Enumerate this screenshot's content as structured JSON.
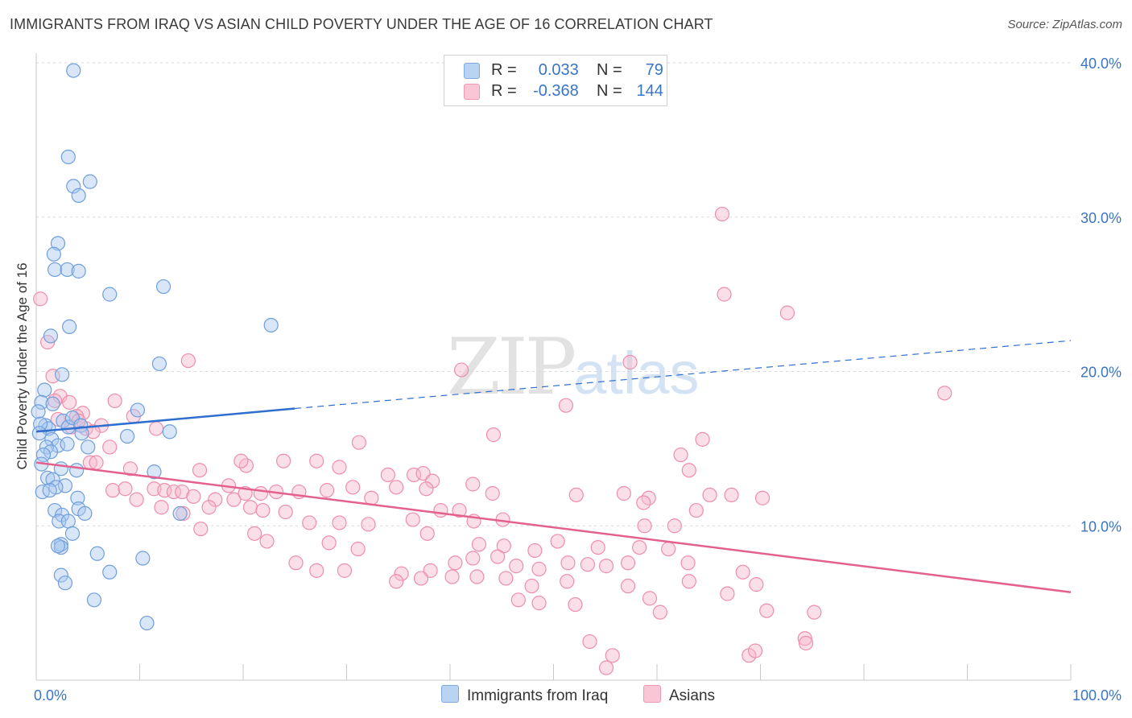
{
  "title": "IMMIGRANTS FROM IRAQ VS ASIAN CHILD POVERTY UNDER THE AGE OF 16 CORRELATION CHART",
  "source": "Source: ZipAtlas.com",
  "watermark": {
    "zip": "ZIP",
    "atlas": "atlas"
  },
  "legend": {
    "rows": [
      {
        "r_label": "R =",
        "r_value": "0.033",
        "n_label": "N =",
        "n_value": "79"
      },
      {
        "r_label": "R =",
        "r_value": "-0.368",
        "n_label": "N =",
        "n_value": "144"
      }
    ]
  },
  "bottom_legend": {
    "series1": "Immigrants from Iraq",
    "series2": "Asians"
  },
  "colors": {
    "blue_fill": "#a8c8ef",
    "blue_stroke": "#6f9fdc",
    "blue_line": "#2f6fcf",
    "pink_fill": "#f7b9cc",
    "pink_stroke": "#ee8eaa",
    "pink_line": "#e3608f",
    "axis_text": "#3a75c4",
    "grid": "#d9d9d9"
  },
  "chart_data": {
    "type": "scatter",
    "title": "IMMIGRANTS FROM IRAQ VS ASIAN CHILD POVERTY UNDER THE AGE OF 16 CORRELATION CHART",
    "xlabel": "",
    "ylabel": "Child Poverty Under the Age of 16",
    "xlim": [
      0,
      100
    ],
    "ylim": [
      0,
      40
    ],
    "x_tick_labels": [
      "0.0%",
      "100.0%"
    ],
    "y_ticks": [
      10,
      20,
      30,
      40
    ],
    "y_tick_labels": [
      "10.0%",
      "20.0%",
      "30.0%",
      "40.0%"
    ],
    "grid": true,
    "series": [
      {
        "name": "Immigrants from Iraq",
        "color": "#a8c8ef",
        "R": 0.033,
        "N": 79,
        "trend": {
          "x0": 0,
          "y0": 16.1,
          "x1": 25,
          "y1": 17.6,
          "dashed_to": [
            100,
            22.0
          ]
        },
        "points": [
          [
            3.6,
            39.5
          ],
          [
            3.1,
            33.9
          ],
          [
            3.6,
            32.0
          ],
          [
            5.2,
            32.3
          ],
          [
            4.1,
            31.4
          ],
          [
            2.1,
            28.3
          ],
          [
            1.7,
            27.6
          ],
          [
            1.8,
            26.6
          ],
          [
            3.0,
            26.6
          ],
          [
            4.1,
            26.5
          ],
          [
            7.1,
            25.0
          ],
          [
            12.3,
            25.5
          ],
          [
            22.7,
            23.0
          ],
          [
            3.2,
            22.9
          ],
          [
            1.4,
            22.3
          ],
          [
            11.9,
            20.5
          ],
          [
            2.5,
            19.8
          ],
          [
            0.8,
            18.8
          ],
          [
            0.5,
            18.0
          ],
          [
            1.6,
            17.9
          ],
          [
            0.2,
            17.4
          ],
          [
            9.8,
            17.5
          ],
          [
            2.6,
            16.8
          ],
          [
            3.1,
            16.4
          ],
          [
            3.5,
            17.0
          ],
          [
            4.3,
            16.5
          ],
          [
            0.9,
            16.5
          ],
          [
            1.2,
            16.3
          ],
          [
            0.4,
            16.6
          ],
          [
            0.3,
            16.0
          ],
          [
            1.5,
            15.6
          ],
          [
            4.4,
            16.0
          ],
          [
            12.9,
            16.1
          ],
          [
            8.8,
            15.8
          ],
          [
            2.1,
            15.2
          ],
          [
            3.0,
            15.3
          ],
          [
            1.0,
            15.1
          ],
          [
            1.4,
            14.8
          ],
          [
            5.0,
            15.1
          ],
          [
            0.7,
            14.6
          ],
          [
            0.5,
            14.0
          ],
          [
            2.4,
            13.7
          ],
          [
            3.9,
            13.6
          ],
          [
            11.4,
            13.5
          ],
          [
            1.1,
            13.1
          ],
          [
            1.6,
            13.0
          ],
          [
            2.8,
            12.6
          ],
          [
            1.9,
            12.5
          ],
          [
            0.6,
            12.2
          ],
          [
            1.3,
            12.3
          ],
          [
            4.0,
            11.8
          ],
          [
            4.1,
            11.1
          ],
          [
            1.8,
            11.0
          ],
          [
            2.5,
            10.7
          ],
          [
            4.7,
            10.8
          ],
          [
            13.9,
            10.8
          ],
          [
            2.2,
            10.3
          ],
          [
            3.1,
            10.3
          ],
          [
            3.5,
            9.5
          ],
          [
            2.4,
            8.8
          ],
          [
            2.4,
            8.6
          ],
          [
            5.9,
            8.2
          ],
          [
            10.3,
            7.9
          ],
          [
            2.4,
            6.8
          ],
          [
            2.8,
            6.3
          ],
          [
            7.1,
            7.0
          ],
          [
            5.6,
            5.2
          ],
          [
            10.7,
            3.7
          ],
          [
            2.1,
            8.7
          ]
        ]
      },
      {
        "name": "Asians",
        "color": "#f7b9cc",
        "R": -0.368,
        "N": 144,
        "trend": {
          "x0": 0,
          "y0": 14.1,
          "x1": 100,
          "y1": 5.7
        },
        "points": [
          [
            66.3,
            30.2
          ],
          [
            66.5,
            25.0
          ],
          [
            72.6,
            23.8
          ],
          [
            0.4,
            24.7
          ],
          [
            1.1,
            21.9
          ],
          [
            14.7,
            20.7
          ],
          [
            41.1,
            20.1
          ],
          [
            57.4,
            20.6
          ],
          [
            1.6,
            19.7
          ],
          [
            2.3,
            18.4
          ],
          [
            1.8,
            18.1
          ],
          [
            3.2,
            18.0
          ],
          [
            7.6,
            18.1
          ],
          [
            87.8,
            18.6
          ],
          [
            51.2,
            17.8
          ],
          [
            4.5,
            17.3
          ],
          [
            3.9,
            17.1
          ],
          [
            2.1,
            16.9
          ],
          [
            11.6,
            16.3
          ],
          [
            6.3,
            16.5
          ],
          [
            3.4,
            16.4
          ],
          [
            9.4,
            17.1
          ],
          [
            4.8,
            16.3
          ],
          [
            5.5,
            16.1
          ],
          [
            44.2,
            15.9
          ],
          [
            64.4,
            15.6
          ],
          [
            31.2,
            15.4
          ],
          [
            7.1,
            15.1
          ],
          [
            5.2,
            14.1
          ],
          [
            5.8,
            14.1
          ],
          [
            20.3,
            13.9
          ],
          [
            19.8,
            14.2
          ],
          [
            23.9,
            14.2
          ],
          [
            27.1,
            14.2
          ],
          [
            62.3,
            14.6
          ],
          [
            63.1,
            13.6
          ],
          [
            29.3,
            13.8
          ],
          [
            34.0,
            13.3
          ],
          [
            36.5,
            13.3
          ],
          [
            37.4,
            13.4
          ],
          [
            38.3,
            12.9
          ],
          [
            9.1,
            13.7
          ],
          [
            11.4,
            12.4
          ],
          [
            12.4,
            12.3
          ],
          [
            13.3,
            12.2
          ],
          [
            14.1,
            12.2
          ],
          [
            15.2,
            11.9
          ],
          [
            17.3,
            11.7
          ],
          [
            19.1,
            11.7
          ],
          [
            20.2,
            12.1
          ],
          [
            21.7,
            12.1
          ],
          [
            23.2,
            12.2
          ],
          [
            25.4,
            12.2
          ],
          [
            28.1,
            12.3
          ],
          [
            30.6,
            12.5
          ],
          [
            34.8,
            12.5
          ],
          [
            37.7,
            12.4
          ],
          [
            42.2,
            12.7
          ],
          [
            44.1,
            12.1
          ],
          [
            52.2,
            12.0
          ],
          [
            56.8,
            12.1
          ],
          [
            59.2,
            11.8
          ],
          [
            65.1,
            12.0
          ],
          [
            70.2,
            11.8
          ],
          [
            7.4,
            12.3
          ],
          [
            8.6,
            12.4
          ],
          [
            9.7,
            11.7
          ],
          [
            12.1,
            11.2
          ],
          [
            14.2,
            10.8
          ],
          [
            16.7,
            11.2
          ],
          [
            20.7,
            11.2
          ],
          [
            21.9,
            11.0
          ],
          [
            24.1,
            10.9
          ],
          [
            26.4,
            10.2
          ],
          [
            29.3,
            10.2
          ],
          [
            32.1,
            10.1
          ],
          [
            36.4,
            10.4
          ],
          [
            39.1,
            11.0
          ],
          [
            42.3,
            10.3
          ],
          [
            45.1,
            10.4
          ],
          [
            58.8,
            10.0
          ],
          [
            61.7,
            10.0
          ],
          [
            63.8,
            11.0
          ],
          [
            58.7,
            11.5
          ],
          [
            67.2,
            12.0
          ],
          [
            4.1,
            16.8
          ],
          [
            15.9,
            9.8
          ],
          [
            21.1,
            9.5
          ],
          [
            22.3,
            9.0
          ],
          [
            28.3,
            8.9
          ],
          [
            31.1,
            8.5
          ],
          [
            37.8,
            9.5
          ],
          [
            42.8,
            8.8
          ],
          [
            45.2,
            8.7
          ],
          [
            48.2,
            8.4
          ],
          [
            50.4,
            9.0
          ],
          [
            54.3,
            8.6
          ],
          [
            58.3,
            8.6
          ],
          [
            61.1,
            8.5
          ],
          [
            25.1,
            7.6
          ],
          [
            27.1,
            7.1
          ],
          [
            29.8,
            7.1
          ],
          [
            35.3,
            6.9
          ],
          [
            38.1,
            7.1
          ],
          [
            40.5,
            7.6
          ],
          [
            42.2,
            7.9
          ],
          [
            44.6,
            8.0
          ],
          [
            46.4,
            7.4
          ],
          [
            48.6,
            7.2
          ],
          [
            51.4,
            7.6
          ],
          [
            53.3,
            7.5
          ],
          [
            55.1,
            7.4
          ],
          [
            57.2,
            7.6
          ],
          [
            34.8,
            6.4
          ],
          [
            37.2,
            6.6
          ],
          [
            40.2,
            6.7
          ],
          [
            42.6,
            6.7
          ],
          [
            45.4,
            6.6
          ],
          [
            47.9,
            6.1
          ],
          [
            51.3,
            6.4
          ],
          [
            57.2,
            6.1
          ],
          [
            63.0,
            7.6
          ],
          [
            68.3,
            7.0
          ],
          [
            69.6,
            6.2
          ],
          [
            46.6,
            5.2
          ],
          [
            48.6,
            5.0
          ],
          [
            52.1,
            4.9
          ],
          [
            60.3,
            4.4
          ],
          [
            70.6,
            4.5
          ],
          [
            75.2,
            4.4
          ],
          [
            59.3,
            5.3
          ],
          [
            66.8,
            5.6
          ],
          [
            63.1,
            6.4
          ],
          [
            53.5,
            2.5
          ],
          [
            55.7,
            1.6
          ],
          [
            55.1,
            0.8
          ],
          [
            68.9,
            1.6
          ],
          [
            69.5,
            1.9
          ],
          [
            74.3,
            2.7
          ],
          [
            74.4,
            2.4
          ],
          [
            15.8,
            13.6
          ],
          [
            18.6,
            12.6
          ],
          [
            32.4,
            11.8
          ],
          [
            40.9,
            11.0
          ]
        ]
      }
    ]
  }
}
